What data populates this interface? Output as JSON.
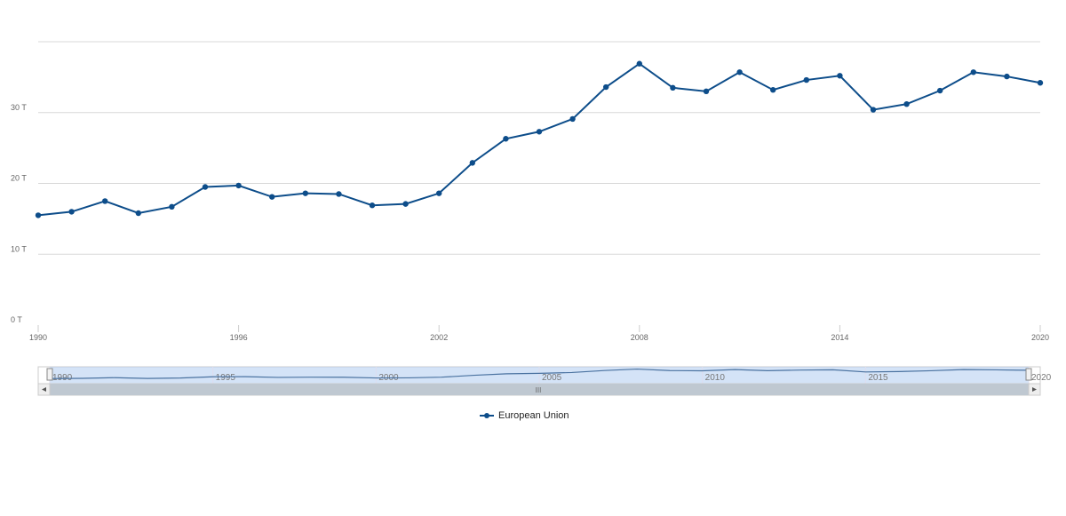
{
  "chart_data": {
    "type": "line",
    "title": "",
    "xlabel": "",
    "ylabel": "",
    "x": [
      1990,
      1991,
      1992,
      1993,
      1994,
      1995,
      1996,
      1997,
      1998,
      1999,
      2000,
      2001,
      2002,
      2003,
      2004,
      2005,
      2006,
      2007,
      2008,
      2009,
      2010,
      2011,
      2012,
      2013,
      2014,
      2015,
      2016,
      2017,
      2018,
      2019,
      2020
    ],
    "series": [
      {
        "name": "European Union",
        "color": "#0d4d8a",
        "values": [
          15.5,
          16.0,
          17.5,
          15.8,
          16.7,
          19.5,
          19.7,
          18.1,
          18.6,
          18.5,
          16.9,
          17.1,
          18.6,
          22.9,
          26.3,
          27.3,
          29.1,
          33.6,
          36.9,
          33.5,
          33.0,
          35.7,
          33.2,
          34.6,
          35.2,
          30.4,
          31.2,
          33.1,
          35.7,
          35.1,
          34.2
        ]
      }
    ],
    "ylim": [
      0,
      40
    ],
    "xlim": [
      1990,
      2020
    ],
    "y_ticks": [
      0,
      10,
      20,
      30,
      40
    ],
    "y_tick_labels": [
      "0 T",
      "10 T",
      "20 T",
      "30 T",
      ""
    ],
    "x_ticks": [
      1990,
      1996,
      2002,
      2008,
      2014,
      2020
    ],
    "x_tick_labels": [
      "1990",
      "1996",
      "2002",
      "2008",
      "2014",
      "2020"
    ],
    "navigator_ticks": [
      1990,
      1995,
      2000,
      2005,
      2010,
      2015,
      2020
    ],
    "navigator_tick_labels": [
      "1990",
      "1995",
      "2000",
      "2005",
      "2010",
      "2015",
      "2020"
    ],
    "grid": true,
    "legend": "bottom-center",
    "scrollbar_grip": "III"
  }
}
